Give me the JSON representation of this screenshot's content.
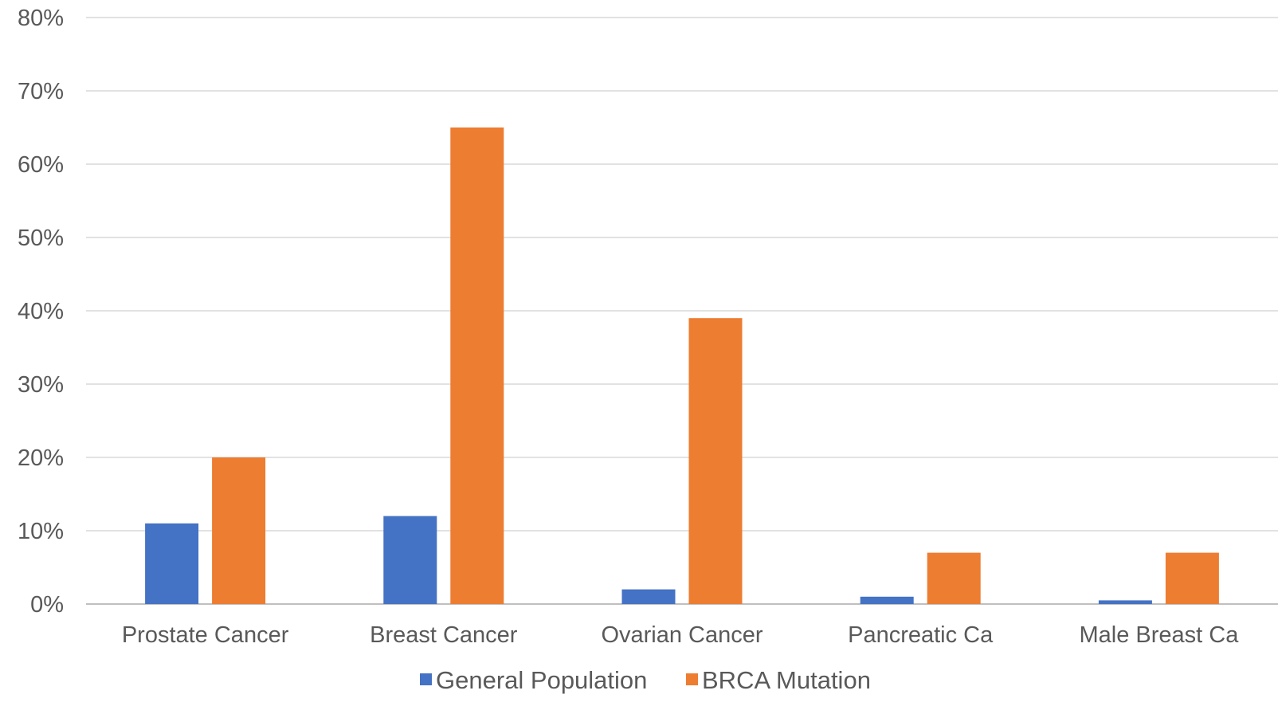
{
  "chart_data": {
    "type": "bar",
    "title": "",
    "xlabel": "",
    "ylabel": "",
    "categories": [
      "Prostate Cancer",
      "Breast Cancer",
      "Ovarian Cancer",
      "Pancreatic Ca",
      "Male Breast Ca"
    ],
    "series": [
      {
        "name": "General Population",
        "values": [
          11,
          12,
          2,
          1,
          0.5
        ]
      },
      {
        "name": "BRCA Mutation",
        "values": [
          20,
          65,
          39,
          7,
          7
        ]
      }
    ],
    "ylim": [
      0,
      80
    ],
    "y_ticks": [
      0,
      10,
      20,
      30,
      40,
      50,
      60,
      70,
      80
    ],
    "y_tick_labels": [
      "0%",
      "10%",
      "20%",
      "30%",
      "40%",
      "50%",
      "60%",
      "70%",
      "80%"
    ],
    "grid": true,
    "legend_position": "bottom",
    "colors": {
      "General Population": "#4472c4",
      "BRCA Mutation": "#ed7d31",
      "gridline": "#d9d9d9",
      "text": "#595959"
    }
  }
}
